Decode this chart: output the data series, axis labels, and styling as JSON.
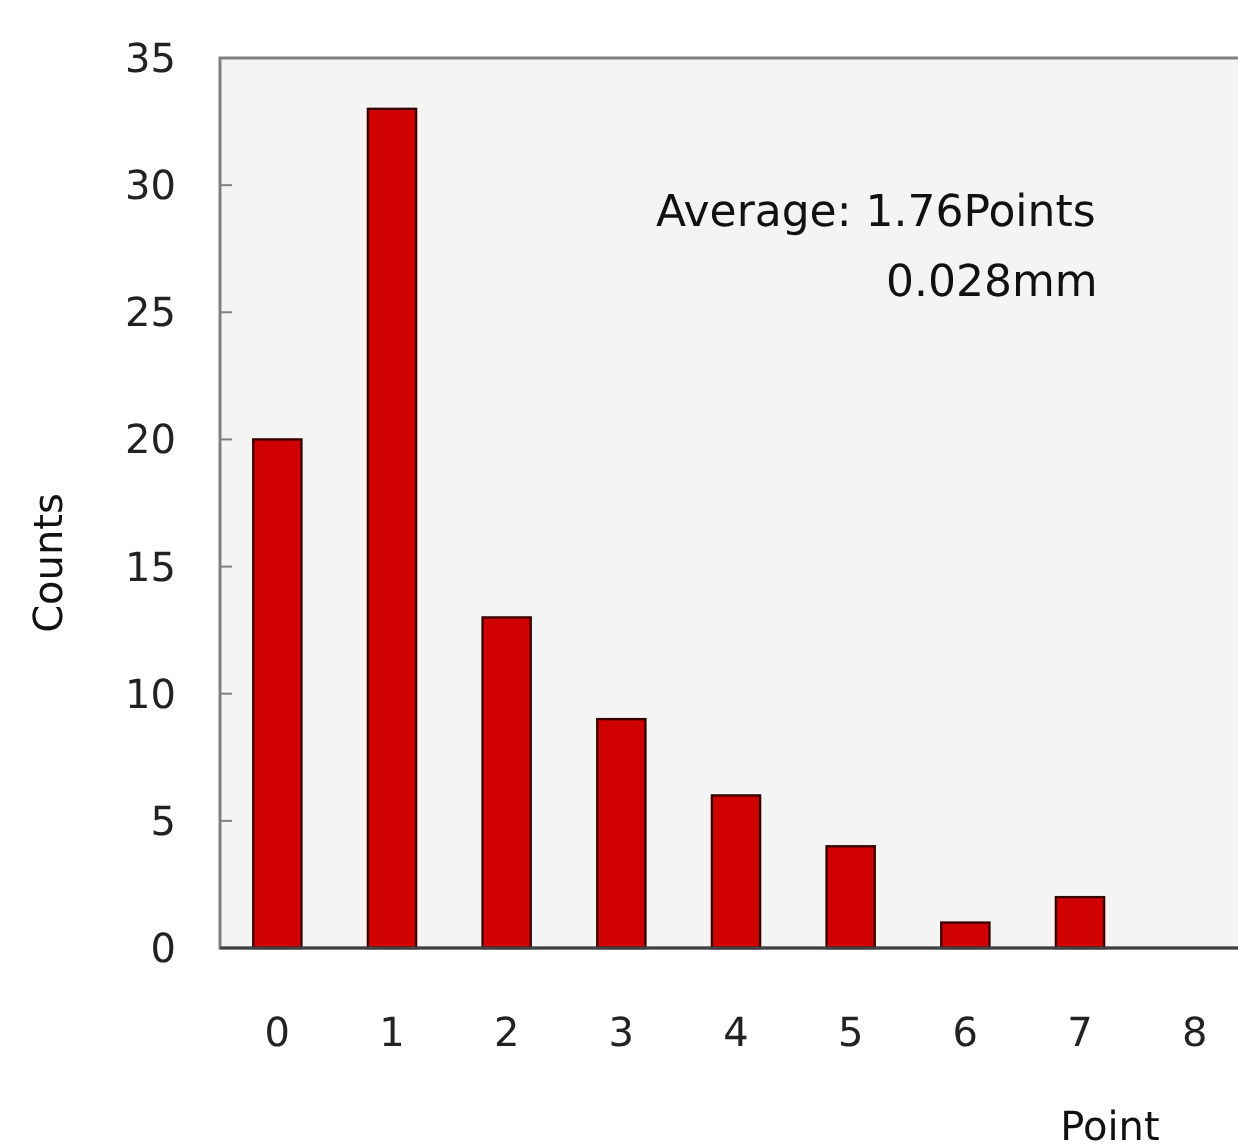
{
  "chart_data": {
    "type": "bar",
    "xlabel": "Point",
    "ylabel": "Counts",
    "categories": [
      "0",
      "1",
      "2",
      "3",
      "4",
      "5",
      "6",
      "7",
      "8"
    ],
    "values": [
      20,
      33,
      13,
      9,
      6,
      4,
      1,
      2,
      0
    ],
    "color": "#d00000",
    "ylim": [
      0,
      35
    ],
    "yticks": [
      0,
      5,
      10,
      15,
      20,
      25,
      30,
      35
    ],
    "annotations": [
      "Average: 1.76Points",
      "0.028mm"
    ]
  }
}
